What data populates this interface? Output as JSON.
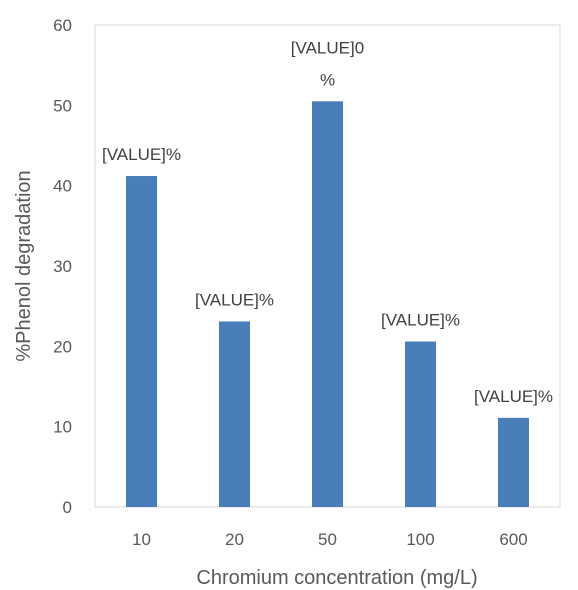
{
  "chart_data": {
    "type": "bar",
    "categories": [
      "10",
      "20",
      "50",
      "100",
      "600"
    ],
    "values": [
      41.2,
      23.1,
      50.5,
      20.6,
      11.1
    ],
    "data_labels": [
      [
        "[VALUE]%"
      ],
      [
        "[VALUE]%"
      ],
      [
        "[VALUE]0",
        "%"
      ],
      [
        "[VALUE]%"
      ],
      [
        "[VALUE]%"
      ]
    ],
    "xlabel": "Chromium concentration (mg/L)",
    "ylabel": "%Phenol degradation",
    "ylim": [
      0,
      60
    ],
    "yticks": [
      0,
      10,
      20,
      30,
      40,
      50,
      60
    ],
    "grid": false,
    "legend": "none",
    "bar_color": "#4a7ebb",
    "plot_border_color": "#d9d9d9",
    "text_color": "#595959"
  }
}
